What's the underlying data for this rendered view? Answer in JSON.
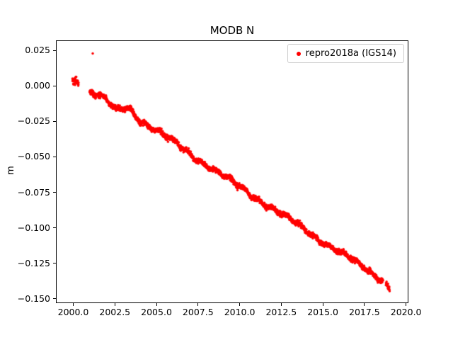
{
  "figure": {
    "title": "MODB N",
    "background": "#ffffff"
  },
  "axes": {
    "ylabel": "m",
    "x_tick_labels": [
      "2000.0",
      "2002.5",
      "2005.0",
      "2007.5",
      "2010.0",
      "2012.5",
      "2015.0",
      "2017.5",
      "2020.0"
    ],
    "y_tick_labels": [
      "0.025",
      "0.000",
      "−0.025",
      "−0.050",
      "−0.075",
      "−0.100",
      "−0.125",
      "−0.150"
    ]
  },
  "legend": {
    "label": "repro2018a (IGS14)",
    "marker_color": "#ff0000"
  },
  "chart_data": {
    "type": "scatter",
    "title": "MODB N",
    "xlabel": "",
    "ylabel": "m",
    "xlim": [
      1999.0,
      2020.1
    ],
    "ylim": [
      -0.1525,
      0.0315
    ],
    "x_tick_values": [
      2000.0,
      2002.5,
      2005.0,
      2007.5,
      2010.0,
      2012.5,
      2015.0,
      2017.5,
      2020.0
    ],
    "y_tick_values": [
      0.025,
      0.0,
      -0.025,
      -0.05,
      -0.075,
      -0.1,
      -0.125,
      -0.15
    ],
    "grid": false,
    "legend_position": "upper right",
    "seed": 42,
    "series": [
      {
        "name": "repro2018a (IGS14)",
        "color": "#ff0000",
        "marker": "point",
        "marker_radius_px": 1.7,
        "x_start": 1999.95,
        "x_end": 2019.02,
        "sample_step_yr": 0.008,
        "trend_slope_m_per_yr": -0.0076,
        "trend_anchors": [
          [
            1999.95,
            0.004
          ],
          [
            2000.3,
            0.003
          ],
          [
            2001.0,
            -0.004
          ],
          [
            2001.6,
            -0.007
          ],
          [
            2002.1,
            -0.012
          ],
          [
            2002.6,
            -0.018
          ],
          [
            2003.3,
            -0.015
          ],
          [
            2004.0,
            -0.0235
          ],
          [
            2005.0,
            -0.0315
          ],
          [
            2006.0,
            -0.0395
          ],
          [
            2007.0,
            -0.0475
          ],
          [
            2008.0,
            -0.0555
          ],
          [
            2009.0,
            -0.0635
          ],
          [
            2010.0,
            -0.0712
          ],
          [
            2011.0,
            -0.0788
          ],
          [
            2012.0,
            -0.0865
          ],
          [
            2013.0,
            -0.0942
          ],
          [
            2014.0,
            -0.1018
          ],
          [
            2015.0,
            -0.1095
          ],
          [
            2016.0,
            -0.117
          ],
          [
            2017.0,
            -0.1245
          ],
          [
            2018.0,
            -0.132
          ],
          [
            2018.6,
            -0.136
          ],
          [
            2018.8,
            -0.139
          ],
          [
            2019.02,
            -0.1425
          ]
        ],
        "data_gaps": [
          [
            2000.32,
            2000.98
          ],
          [
            2018.62,
            2018.79
          ]
        ],
        "noise_m": 0.0028,
        "early_noise_until": 2000.35,
        "early_noise_factor": 1.6,
        "wiggles": [
          {
            "amp": 0.0011,
            "period": 0.85,
            "phase": 1.3
          },
          {
            "amp": 0.0012,
            "period": 3.6,
            "phase": 0.4
          }
        ],
        "outliers": [
          [
            2001.17,
            0.0228
          ],
          [
            2009.87,
            -0.0735
          ]
        ]
      }
    ]
  }
}
